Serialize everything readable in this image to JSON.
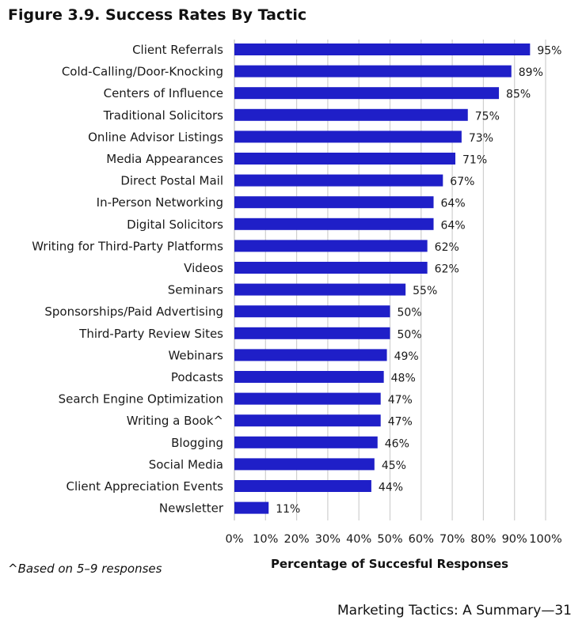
{
  "page": {
    "figure_title": "Figure 3.9. Success Rates By Tactic",
    "footnote": "^Based on 5–9 responses",
    "footer": "Marketing Tactics: A Summary—31"
  },
  "chart_data": {
    "type": "bar",
    "orientation": "horizontal",
    "title": "Figure 3.9. Success Rates By Tactic",
    "xlabel": "Percentage of Succesful Responses",
    "ylabel": "",
    "xlim": [
      0,
      100
    ],
    "xticks": [
      0,
      10,
      20,
      30,
      40,
      50,
      60,
      70,
      80,
      90,
      100
    ],
    "xtick_labels": [
      "0%",
      "10%",
      "20%",
      "30%",
      "40%",
      "50%",
      "60%",
      "70%",
      "80%",
      "90%",
      "100%"
    ],
    "grid": "vertical",
    "bar_color": "#1f1fc8",
    "categories": [
      "Client Referrals",
      "Cold-Calling/Door-Knocking",
      "Centers of Influence",
      "Traditional Solicitors",
      "Online Advisor Listings",
      "Media Appearances",
      "Direct Postal Mail",
      "In-Person Networking",
      "Digital Solicitors",
      "Writing for Third-Party Platforms",
      "Videos",
      "Seminars",
      "Sponsorships/Paid Advertising",
      "Third-Party Review Sites",
      "Webinars",
      "Podcasts",
      "Search Engine Optimization",
      "Writing a Book^",
      "Blogging",
      "Social Media",
      "Client Appreciation Events",
      "Newsletter"
    ],
    "values": [
      95,
      89,
      85,
      75,
      73,
      71,
      67,
      64,
      64,
      62,
      62,
      55,
      50,
      50,
      49,
      48,
      47,
      47,
      46,
      45,
      44,
      11
    ],
    "value_labels": [
      "95%",
      "89%",
      "85%",
      "75%",
      "73%",
      "71%",
      "67%",
      "64%",
      "64%",
      "62%",
      "62%",
      "55%",
      "50%",
      "50%",
      "49%",
      "48%",
      "47%",
      "47%",
      "46%",
      "45%",
      "44%",
      "11%"
    ]
  }
}
